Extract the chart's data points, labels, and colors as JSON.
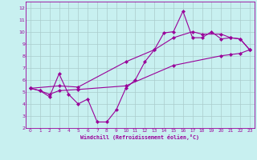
{
  "xlabel": "Windchill (Refroidissement éolien,°C)",
  "bg_color": "#c8f0f0",
  "grid_color": "#aacccc",
  "line_color": "#990099",
  "xlim": [
    -0.5,
    23.5
  ],
  "ylim": [
    2,
    12.5
  ],
  "xticks": [
    0,
    1,
    2,
    3,
    4,
    5,
    6,
    7,
    8,
    9,
    10,
    11,
    12,
    13,
    14,
    15,
    16,
    17,
    18,
    19,
    20,
    21,
    22,
    23
  ],
  "yticks": [
    2,
    3,
    4,
    5,
    6,
    7,
    8,
    9,
    10,
    11,
    12
  ],
  "line1_x": [
    0,
    1,
    2,
    3,
    4,
    5,
    6,
    7,
    8,
    9,
    10,
    11,
    12,
    13,
    14,
    15,
    16,
    17,
    18,
    19,
    20,
    21,
    22,
    23
  ],
  "line1_y": [
    5.3,
    5.1,
    4.6,
    6.5,
    4.8,
    4.0,
    4.4,
    2.5,
    2.5,
    3.5,
    5.3,
    6.0,
    7.5,
    8.5,
    9.9,
    10.0,
    11.7,
    9.5,
    9.5,
    10.0,
    9.4,
    9.5,
    9.4,
    8.5
  ],
  "line2_x": [
    0,
    1,
    2,
    3,
    5,
    10,
    15,
    20,
    21,
    22,
    23
  ],
  "line2_y": [
    5.3,
    5.1,
    4.8,
    5.1,
    5.2,
    5.5,
    7.2,
    8.0,
    8.1,
    8.2,
    8.5
  ],
  "line3_x": [
    0,
    3,
    5,
    10,
    13,
    15,
    17,
    18,
    20,
    21,
    22,
    23
  ],
  "line3_y": [
    5.3,
    5.5,
    5.4,
    7.5,
    8.5,
    9.5,
    10.0,
    9.8,
    9.8,
    9.5,
    9.4,
    8.5
  ]
}
